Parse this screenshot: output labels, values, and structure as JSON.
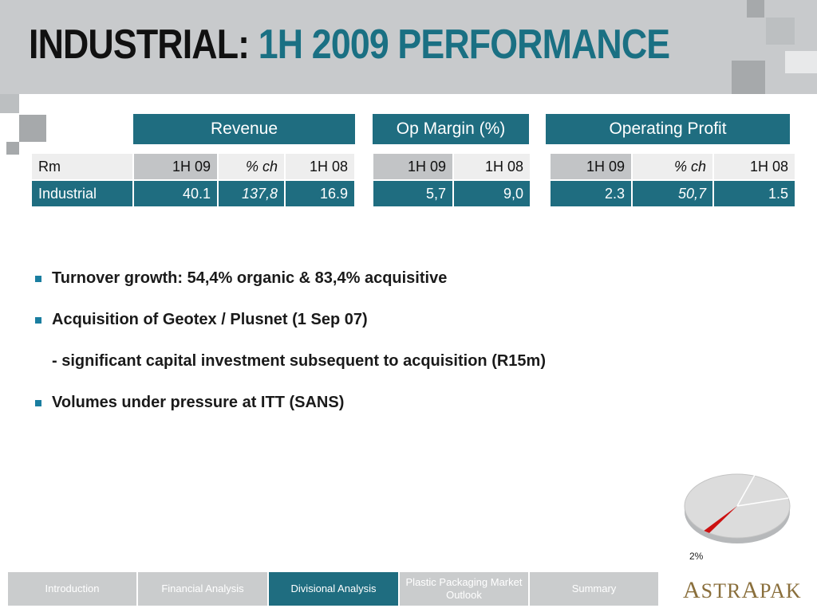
{
  "title": {
    "part1": "INDUSTRIAL:",
    "part2": "1H 2009 PERFORMANCE"
  },
  "headers": {
    "revenue": "Revenue",
    "op_margin": "Op Margin (%)",
    "operating_profit": "Operating Profit"
  },
  "revenue_table": {
    "header": [
      "Rm",
      "1H 09",
      "% ch",
      "1H 08"
    ],
    "row": [
      "Industrial",
      "40.1",
      "137,8",
      "16.9"
    ]
  },
  "margin_table": {
    "header": [
      "1H 09",
      "1H 08"
    ],
    "row": [
      "5,7",
      "9,0"
    ]
  },
  "profit_table": {
    "header": [
      "1H 09",
      "% ch",
      "1H 08"
    ],
    "row": [
      "2.3",
      "50,7",
      "1.5"
    ]
  },
  "bullets": [
    "Turnover growth: 54,4% organic & 83,4% acquisitive",
    "Acquisition of Geotex / Plusnet  (1 Sep 07)",
    "- significant capital investment subsequent to acquisition (R15m)",
    "Volumes under pressure at ITT (SANS)"
  ],
  "pie": {
    "label": "2%",
    "highlight_fraction": 0.02,
    "highlight_color": "#cc1111",
    "base_color": "#dcdcdc"
  },
  "nav": [
    "Introduction",
    "Financial Analysis",
    "Divisional Analysis",
    "Plastic Packaging Market Outlook",
    "Summary"
  ],
  "nav_active": "Divisional Analysis",
  "logo": {
    "first": "A",
    "part1": "STR",
    "second": "A",
    "part2": "PAK"
  },
  "colors": {
    "accent": "#1f6d80",
    "header_bg": "#c8cacc",
    "bullet": "#1a7ea0"
  }
}
